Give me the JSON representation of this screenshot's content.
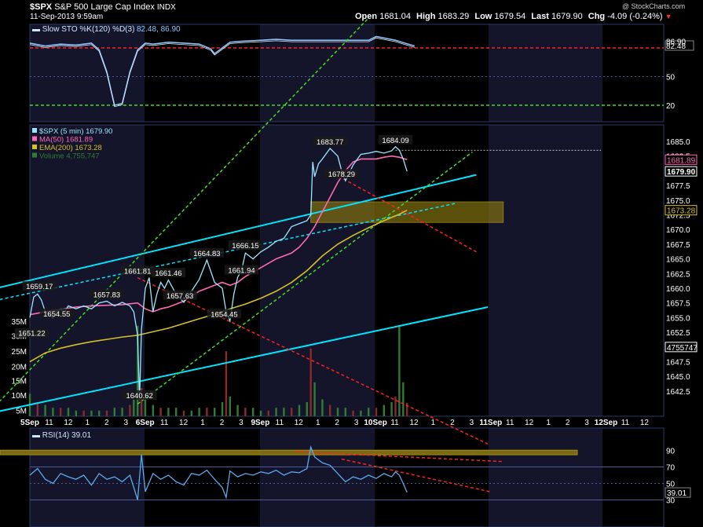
{
  "header": {
    "symbol": "$SPX",
    "name": "S&P 500 Large Cap Index",
    "exchange": "INDX",
    "datetime": "11-Sep-2013 9:59am",
    "open_label": "Open",
    "open": "1681.04",
    "high_label": "High",
    "high": "1683.29",
    "low_label": "Low",
    "low": "1679.54",
    "last_label": "Last",
    "last": "1679.90",
    "chg_label": "Chg",
    "chg": "-4.09 (-0.24%)",
    "watermark": "@ StockCharts.com"
  },
  "colors": {
    "price": "#9be7ff",
    "ma50": "#ff69b4",
    "ema200": "#d4c02a",
    "sto": "#8ec8ff",
    "rsi": "#5aaaee",
    "volume": "#2e7d32",
    "trend_cyan": "#00e5ff",
    "trend_green": "#44dd22",
    "trend_red": "#ff2020",
    "band": "#7a6a10",
    "session_bg": "#14142a"
  },
  "chart_data": [
    {
      "type": "line",
      "panel": "sto",
      "title": "Slow STO %K(120) %D(3)",
      "legend_values": [
        "82.48",
        "86.90"
      ],
      "ylim": [
        0,
        100
      ],
      "yticks": [
        20,
        50,
        82.48,
        86.9
      ],
      "yticks_labels": [
        "20",
        "50",
        "82.48",
        "86.90"
      ],
      "hlines": [
        {
          "y": 80,
          "color": "red"
        },
        {
          "y": 20,
          "color": "green"
        },
        {
          "y": 50,
          "color": "dotted"
        }
      ],
      "last_value": 82.48,
      "series": [
        {
          "name": "%K",
          "x": [
            0,
            4,
            8,
            12,
            16,
            18,
            20,
            22,
            24,
            26,
            28,
            30,
            32,
            36,
            40,
            44,
            47,
            48,
            50,
            52,
            55,
            60,
            64,
            68,
            72,
            80,
            85,
            88,
            90,
            95,
            100
          ],
          "values": [
            85,
            82,
            84,
            83,
            85,
            78,
            55,
            20,
            22,
            55,
            78,
            85,
            84,
            86,
            85,
            84,
            79,
            74,
            80,
            86,
            87,
            88,
            89,
            88,
            88,
            88,
            88,
            88,
            92,
            88,
            82
          ]
        }
      ]
    },
    {
      "type": "line",
      "panel": "price",
      "legend": [
        {
          "text": "$SPX (5 min) 1679.90"
        },
        {
          "text": "MA(50) 1681.89"
        },
        {
          "text": "EMA(200) 1673.28"
        },
        {
          "text": "Volume 4,755,747"
        }
      ],
      "ylim": [
        1640.62,
        1685
      ],
      "yticks": [
        1642.5,
        1645,
        1647.5,
        1650,
        1652.5,
        1655,
        1657.5,
        1660,
        1662.5,
        1665,
        1667.5,
        1670,
        1672.5,
        1675,
        1677.5,
        1680,
        1682.5,
        1685
      ],
      "yticks_labels": [
        "1642.5",
        "1645.0",
        "1647.5",
        "1650.0",
        "1652.5",
        "1655.0",
        "1657.5",
        "1660.0",
        "1662.5",
        "1665.0",
        "1667.5",
        "1670.0",
        "1672.5",
        "1675.0",
        "1677.5",
        "1680.0",
        "1682.5",
        "1685.0"
      ],
      "right_labels": [
        {
          "y": 1681.89,
          "text": "1681.89",
          "color": "#ff69b4"
        },
        {
          "y": 1679.9,
          "text": "1679.90",
          "color": "#ffffff"
        },
        {
          "y": 1673.28,
          "text": "1673.28",
          "color": "#d4c02a"
        },
        {
          "y": 1650.0,
          "text": "4755747",
          "color": "#ffffff"
        }
      ],
      "vol_ticks": [
        {
          "y": 1654.4,
          "text": "35M"
        },
        {
          "y": 1651.9,
          "text": "30M"
        },
        {
          "y": 1649.3,
          "text": "25M"
        },
        {
          "y": 1646.7,
          "text": "20M"
        },
        {
          "y": 1644.3,
          "text": "15M"
        },
        {
          "y": 1641.8,
          "text": "10M"
        },
        {
          "y": 1639.2,
          "text": "5M"
        }
      ],
      "x_labels": [
        "5Sep",
        "11",
        "12",
        "1",
        "2",
        "3",
        "6Sep",
        "11",
        "12",
        "1",
        "2",
        "3",
        "9Sep",
        "11",
        "12",
        "1",
        "2",
        "3",
        "10Sep",
        "11",
        "12",
        "1",
        "2",
        "3",
        "11Sep",
        "11",
        "12",
        "1",
        "2",
        "3",
        "12Sep",
        "11",
        "12"
      ],
      "annotations": [
        {
          "x": 2.5,
          "y": 1659.17,
          "text": "1659.17"
        },
        {
          "x": 7,
          "y": 1654.55,
          "text": "1654.55"
        },
        {
          "x": 0.5,
          "y": 1651.22,
          "text": "1651.22"
        },
        {
          "x": 20,
          "y": 1657.83,
          "text": "1657.83"
        },
        {
          "x": 28,
          "y": 1661.81,
          "text": "1661.81"
        },
        {
          "x": 28.5,
          "y": 1640.62,
          "text": "1640.62"
        },
        {
          "x": 36,
          "y": 1661.46,
          "text": "1661.46"
        },
        {
          "x": 39,
          "y": 1657.63,
          "text": "1657.63"
        },
        {
          "x": 46,
          "y": 1664.83,
          "text": "1664.83"
        },
        {
          "x": 55,
          "y": 1661.94,
          "text": "1661.94"
        },
        {
          "x": 50.5,
          "y": 1654.45,
          "text": "1654.45"
        },
        {
          "x": 56,
          "y": 1666.15,
          "text": "1666.15"
        },
        {
          "x": 78,
          "y": 1683.77,
          "text": "1683.77"
        },
        {
          "x": 81,
          "y": 1678.29,
          "text": "1678.29"
        },
        {
          "x": 95,
          "y": 1684.09,
          "text": "1684.09"
        }
      ],
      "band": {
        "x0": 73,
        "x1": 123,
        "y0": 1671.2,
        "y1": 1674.7
      },
      "price_dotted_level": 1683.5,
      "series": [
        {
          "name": "$SPX (5 min)",
          "x": [
            0,
            1,
            2,
            3,
            4,
            5,
            6,
            7,
            8,
            9,
            10,
            12,
            14,
            16,
            18,
            20,
            22,
            24,
            26,
            27,
            28,
            28.5,
            29,
            30,
            31,
            32,
            33,
            34,
            35,
            36,
            38,
            40,
            42,
            44,
            46,
            48,
            50,
            51,
            52,
            53,
            54,
            55,
            56,
            58,
            60,
            62,
            64,
            66,
            68,
            70,
            72,
            73,
            73.5,
            74,
            75,
            76,
            78,
            80,
            81,
            82,
            84,
            86,
            88,
            90,
            92,
            94,
            95,
            96,
            97,
            98
          ],
          "values": [
            1655,
            1658.5,
            1659,
            1658,
            1656,
            1655.5,
            1655,
            1656,
            1656.5,
            1656,
            1657,
            1656.5,
            1657,
            1656.5,
            1657.5,
            1657.8,
            1657,
            1657.6,
            1657,
            1656,
            1652,
            1641,
            1653,
            1660,
            1661.8,
            1656,
            1659,
            1661,
            1660,
            1661.4,
            1659,
            1657.6,
            1659.5,
            1661.5,
            1664.8,
            1661,
            1660,
            1656,
            1654.45,
            1659,
            1661.9,
            1663,
            1666,
            1665,
            1666.2,
            1667,
            1668,
            1668.5,
            1670.5,
            1671,
            1671.5,
            1672.5,
            1681.5,
            1679,
            1681.2,
            1682,
            1683.8,
            1682.5,
            1680,
            1678.3,
            1681,
            1682.8,
            1683,
            1683.3,
            1683,
            1683.4,
            1684.09,
            1683.5,
            1682,
            1679.9
          ]
        },
        {
          "name": "MA(50)",
          "x": [
            0,
            4,
            8,
            12,
            16,
            20,
            24,
            28,
            30,
            32,
            34,
            36,
            40,
            44,
            48,
            50,
            52,
            54,
            56,
            60,
            64,
            68,
            70,
            72,
            74,
            76,
            78,
            80,
            82,
            84,
            86,
            88,
            90,
            92,
            94,
            96,
            98
          ],
          "values": [
            1655.5,
            1656,
            1656.4,
            1656.8,
            1657,
            1657.1,
            1657.2,
            1657.5,
            1656.5,
            1656,
            1656.5,
            1656.8,
            1657.8,
            1659.5,
            1660.5,
            1661,
            1660.5,
            1661,
            1662,
            1663.5,
            1665,
            1666,
            1667,
            1668.5,
            1670.5,
            1673,
            1675.5,
            1678,
            1680,
            1681.5,
            1682,
            1682,
            1682,
            1682.3,
            1682.5,
            1682.3,
            1681.89
          ]
        },
        {
          "name": "EMA(200)",
          "x": [
            0,
            4,
            8,
            12,
            16,
            20,
            24,
            28,
            32,
            36,
            40,
            44,
            48,
            52,
            56,
            60,
            64,
            68,
            72,
            76,
            80,
            84,
            88,
            92,
            96,
            98
          ],
          "values": [
            1647.5,
            1649,
            1649.8,
            1650.4,
            1650.9,
            1651.3,
            1651.7,
            1652,
            1652.6,
            1653.2,
            1654,
            1654.8,
            1655.6,
            1656.5,
            1657.3,
            1658.3,
            1659.5,
            1661,
            1663,
            1665.5,
            1667.5,
            1669,
            1670.3,
            1671.5,
            1672.6,
            1673.28
          ]
        }
      ],
      "trendlines": [
        {
          "color": "cyan",
          "style": "solid",
          "x": [
            -12,
            116
          ],
          "y": [
            1659.5,
            1679.3
          ]
        },
        {
          "color": "cyan",
          "style": "dashed",
          "x": [
            -12,
            111
          ],
          "y": [
            1657.5,
            1674.5
          ]
        },
        {
          "color": "cyan",
          "style": "solid",
          "x": [
            -12,
            119
          ],
          "y": [
            1638.5,
            1656.8
          ]
        },
        {
          "color": "green",
          "style": "dashed",
          "x": [
            -9,
            88
          ],
          "y": [
            1640,
            1706
          ]
        },
        {
          "color": "green",
          "style": "dashed",
          "x": [
            28,
            115
          ],
          "y": [
            1640.3,
            1683.2
          ]
        },
        {
          "color": "red",
          "style": "dashed",
          "x": [
            28,
            119
          ],
          "y": [
            1661.8,
            1633.5
          ]
        },
        {
          "color": "red",
          "style": "dashed",
          "x": [
            79,
            116
          ],
          "y": [
            1679.5,
            1666.2
          ]
        }
      ]
    },
    {
      "type": "bar",
      "panel": "volume",
      "name": "Volume",
      "unit": "M",
      "x": [
        0,
        2,
        4,
        6,
        8,
        10,
        12,
        14,
        16,
        18,
        20,
        22,
        24,
        26,
        27,
        28,
        29,
        30,
        32,
        34,
        36,
        38,
        40,
        42,
        44,
        46,
        48,
        50,
        51,
        52,
        54,
        56,
        58,
        60,
        62,
        64,
        66,
        68,
        70,
        72,
        73,
        74,
        76,
        78,
        80,
        82,
        84,
        86,
        88,
        90,
        92,
        94,
        95,
        96,
        97,
        98
      ],
      "values": [
        8,
        5,
        4,
        3,
        3,
        3,
        2,
        2,
        2,
        2,
        2,
        3,
        3,
        4,
        6,
        32,
        10,
        7,
        4,
        3,
        3,
        3,
        2,
        2,
        3,
        3,
        3,
        5,
        23,
        7,
        4,
        3,
        3,
        2,
        2,
        3,
        3,
        3,
        4,
        5,
        24,
        12,
        6,
        4,
        3,
        3,
        2,
        2,
        3,
        3,
        4,
        5,
        7,
        32,
        12,
        4.76
      ]
    },
    {
      "type": "line",
      "panel": "rsi",
      "title": "RSI(14)",
      "last_value": 39.01,
      "ylim": [
        20,
        100
      ],
      "yticks": [
        30,
        50,
        70,
        90
      ],
      "yticks_labels": [
        "30",
        "50",
        "70",
        "90"
      ],
      "hlines": [
        {
          "y": 70,
          "color": "gray"
        },
        {
          "y": 50,
          "color": "dotted"
        },
        {
          "y": 30,
          "color": "gray"
        }
      ],
      "series": [
        {
          "name": "RSI(14)",
          "x": [
            0,
            2,
            4,
            6,
            8,
            10,
            12,
            14,
            16,
            18,
            20,
            22,
            24,
            26,
            27,
            28,
            29,
            30,
            32,
            34,
            36,
            38,
            40,
            42,
            44,
            46,
            48,
            50,
            51,
            52,
            54,
            56,
            58,
            60,
            62,
            64,
            66,
            68,
            70,
            72,
            73,
            74,
            76,
            78,
            80,
            82,
            84,
            86,
            88,
            90,
            92,
            94,
            95,
            96,
            97,
            98
          ],
          "values": [
            60,
            68,
            55,
            50,
            62,
            58,
            55,
            60,
            48,
            62,
            55,
            58,
            52,
            60,
            45,
            30,
            85,
            40,
            62,
            55,
            60,
            52,
            48,
            62,
            60,
            66,
            55,
            45,
            33,
            65,
            58,
            62,
            60,
            64,
            62,
            66,
            60,
            64,
            63,
            68,
            94,
            82,
            75,
            72,
            62,
            52,
            58,
            55,
            60,
            56,
            62,
            58,
            64,
            60,
            50,
            39.01
          ]
        }
      ],
      "band_y": 87.5,
      "trendlines": [
        {
          "color": "red",
          "style": "dashed",
          "x": [
            69,
            123
          ],
          "y": [
            88.5,
            76.5
          ]
        },
        {
          "color": "red",
          "style": "dashed",
          "x": [
            81,
            120
          ],
          "y": [
            79.5,
            39.5
          ]
        }
      ]
    }
  ]
}
